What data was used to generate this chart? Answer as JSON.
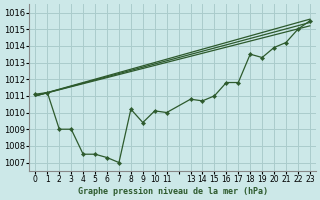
{
  "title": "Graphe pression niveau de la mer (hPa)",
  "bg_color": "#cce8e8",
  "grid_color": "#aacccc",
  "line_color": "#2d5a2d",
  "xlim": [
    -0.5,
    23.5
  ],
  "ylim": [
    1006.5,
    1016.5
  ],
  "yticks": [
    1007,
    1008,
    1009,
    1010,
    1011,
    1012,
    1013,
    1014,
    1015,
    1016
  ],
  "xticks": [
    0,
    1,
    2,
    3,
    4,
    5,
    6,
    7,
    8,
    9,
    10,
    11,
    12,
    13,
    14,
    15,
    16,
    17,
    18,
    19,
    20,
    21,
    22,
    23
  ],
  "xtick_labels": [
    "0",
    "1",
    "2",
    "3",
    "4",
    "5",
    "6",
    "7",
    "8",
    "9",
    "10",
    "11",
    "",
    "13",
    "14",
    "15",
    "16",
    "17",
    "18",
    "19",
    "20",
    "21",
    "22",
    "23"
  ],
  "series_main": {
    "x": [
      0,
      1,
      2,
      3,
      4,
      5,
      6,
      7,
      8,
      9,
      10,
      11,
      13,
      14,
      15,
      16,
      17,
      18,
      19,
      20,
      21,
      22,
      23
    ],
    "y": [
      1011.1,
      1011.2,
      1009.0,
      1009.0,
      1007.5,
      1007.5,
      1007.3,
      1007.0,
      1010.2,
      1009.4,
      1010.1,
      1010.0,
      1010.8,
      1010.7,
      1011.0,
      1011.8,
      1011.8,
      1013.5,
      1013.3,
      1013.9,
      1014.2,
      1015.0,
      1015.5
    ]
  },
  "series_straight": [
    {
      "x": [
        0,
        23
      ],
      "y": [
        1011.0,
        1015.6
      ]
    },
    {
      "x": [
        0,
        23
      ],
      "y": [
        1011.0,
        1015.4
      ]
    },
    {
      "x": [
        0,
        23
      ],
      "y": [
        1011.0,
        1015.2
      ]
    }
  ]
}
